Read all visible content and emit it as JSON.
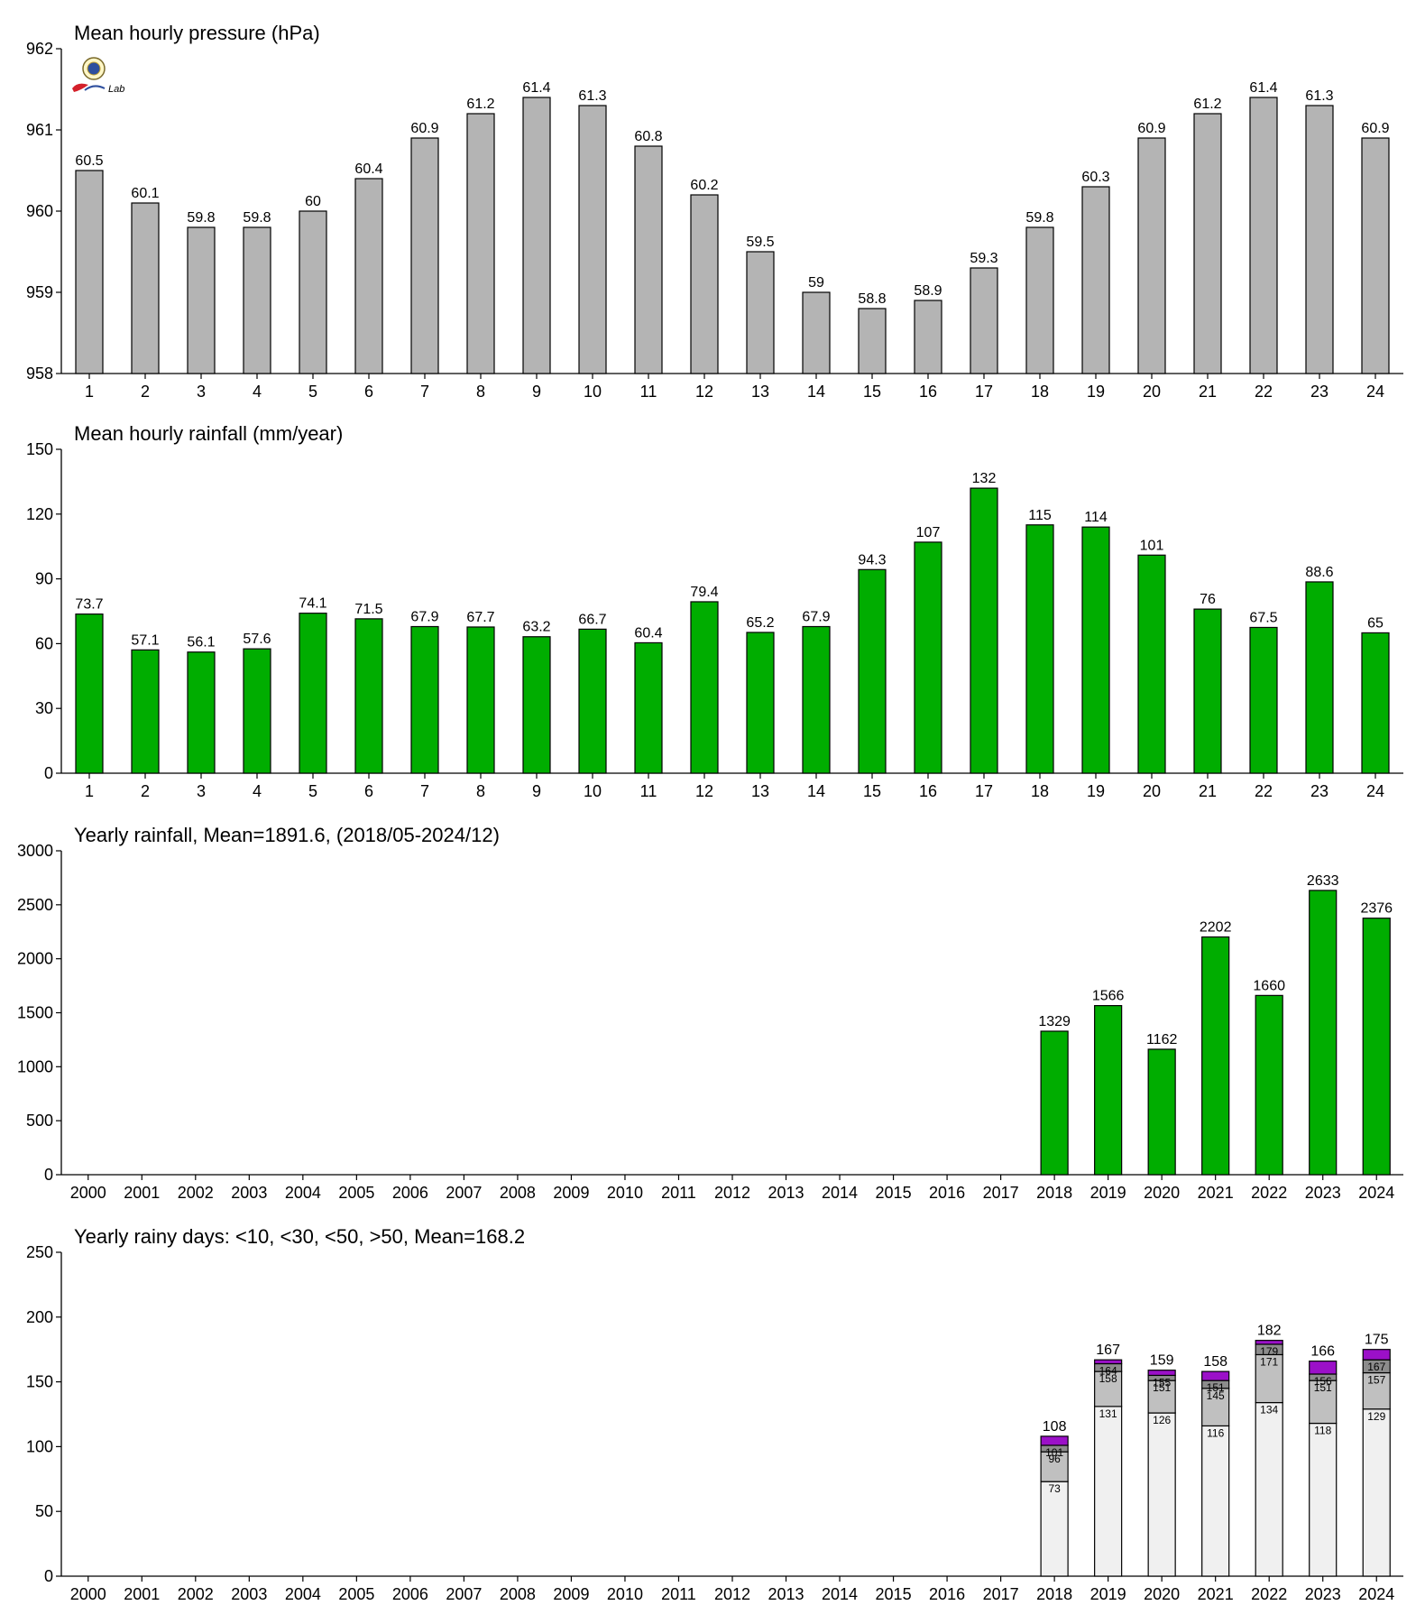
{
  "logo": {
    "text": "Lab"
  },
  "colors": {
    "gray": "#b4b4b4",
    "green": "#00ad00",
    "light": "#f0f0f0",
    "mid": "#c0c0c0",
    "dark": "#8c8c8c",
    "purple": "#9b10c8"
  },
  "chart_data": [
    {
      "type": "bar",
      "title": "Mean hourly pressure (hPa)",
      "ylim": [
        958,
        962
      ],
      "yticks": [
        958,
        959,
        960,
        961,
        962
      ],
      "categories": [
        "1",
        "2",
        "3",
        "4",
        "5",
        "6",
        "7",
        "8",
        "9",
        "10",
        "11",
        "12",
        "13",
        "14",
        "15",
        "16",
        "17",
        "18",
        "19",
        "20",
        "21",
        "22",
        "23",
        "24"
      ],
      "values": [
        960.5,
        960.1,
        959.8,
        959.8,
        960,
        960.4,
        960.9,
        961.2,
        961.4,
        961.3,
        960.8,
        960.2,
        959.5,
        959,
        958.8,
        958.9,
        959.3,
        959.8,
        960.3,
        960.9,
        961.2,
        961.4,
        961.3,
        960.9
      ],
      "labels": [
        "60.5",
        "60.1",
        "59.8",
        "59.8",
        "60",
        "60.4",
        "60.9",
        "61.2",
        "61.4",
        "61.3",
        "60.8",
        "60.2",
        "59.5",
        "59",
        "58.8",
        "58.9",
        "59.3",
        "59.8",
        "60.3",
        "60.9",
        "61.2",
        "61.4",
        "61.3",
        "60.9"
      ],
      "color": "#b4b4b4"
    },
    {
      "type": "bar",
      "title": "Mean hourly rainfall (mm/year)",
      "ylim": [
        0,
        150
      ],
      "yticks": [
        0,
        30,
        60,
        90,
        120,
        150
      ],
      "categories": [
        "1",
        "2",
        "3",
        "4",
        "5",
        "6",
        "7",
        "8",
        "9",
        "10",
        "11",
        "12",
        "13",
        "14",
        "15",
        "16",
        "17",
        "18",
        "19",
        "20",
        "21",
        "22",
        "23",
        "24"
      ],
      "values": [
        73.7,
        57.1,
        56.1,
        57.6,
        74.1,
        71.5,
        67.9,
        67.7,
        63.2,
        66.7,
        60.4,
        79.4,
        65.2,
        67.9,
        94.3,
        107,
        132,
        115,
        114,
        101,
        76,
        67.5,
        88.6,
        65
      ],
      "labels": [
        "73.7",
        "57.1",
        "56.1",
        "57.6",
        "74.1",
        "71.5",
        "67.9",
        "67.7",
        "63.2",
        "66.7",
        "60.4",
        "79.4",
        "65.2",
        "67.9",
        "94.3",
        "107",
        "132",
        "115",
        "114",
        "101",
        "76",
        "67.5",
        "88.6",
        "65"
      ],
      "color": "#00ad00"
    },
    {
      "type": "bar",
      "title": "Yearly rainfall, Mean=1891.6, (2018/05-2024/12)",
      "ylim": [
        0,
        3000
      ],
      "yticks": [
        0,
        500,
        1000,
        1500,
        2000,
        2500,
        3000
      ],
      "categories": [
        "2000",
        "2001",
        "2002",
        "2003",
        "2004",
        "2005",
        "2006",
        "2007",
        "2008",
        "2009",
        "2010",
        "2011",
        "2012",
        "2013",
        "2014",
        "2015",
        "2016",
        "2017",
        "2018",
        "2019",
        "2020",
        "2021",
        "2022",
        "2023",
        "2024"
      ],
      "values": [
        null,
        null,
        null,
        null,
        null,
        null,
        null,
        null,
        null,
        null,
        null,
        null,
        null,
        null,
        null,
        null,
        null,
        null,
        1329,
        1566,
        1162,
        2202,
        1660,
        2633,
        2376
      ],
      "labels": [
        "",
        "",
        "",
        "",
        "",
        "",
        "",
        "",
        "",
        "",
        "",
        "",
        "",
        "",
        "",
        "",
        "",
        "",
        "1329",
        "1566",
        "1162",
        "2202",
        "1660",
        "2633",
        "2376"
      ],
      "color": "#00ad00"
    },
    {
      "type": "stacked-bar",
      "title": "Yearly rainy days: <10, <30, <50, >50, Mean=168.2",
      "ylim": [
        0,
        250
      ],
      "yticks": [
        0,
        50,
        100,
        150,
        200,
        250
      ],
      "categories": [
        "2000",
        "2001",
        "2002",
        "2003",
        "2004",
        "2005",
        "2006",
        "2007",
        "2008",
        "2009",
        "2010",
        "2011",
        "2012",
        "2013",
        "2014",
        "2015",
        "2016",
        "2017",
        "2018",
        "2019",
        "2020",
        "2021",
        "2022",
        "2023",
        "2024"
      ],
      "cumulative": [
        null,
        null,
        null,
        null,
        null,
        null,
        null,
        null,
        null,
        null,
        null,
        null,
        null,
        null,
        null,
        null,
        null,
        null,
        [
          73,
          96,
          101,
          108
        ],
        [
          131,
          158,
          164,
          167
        ],
        [
          126,
          151,
          155,
          159
        ],
        [
          116,
          145,
          151,
          158
        ],
        [
          134,
          171,
          179,
          182
        ],
        [
          118,
          151,
          156,
          166
        ],
        [
          129,
          157,
          167,
          175
        ]
      ],
      "segment_labels": [
        null,
        null,
        null,
        null,
        null,
        null,
        null,
        null,
        null,
        null,
        null,
        null,
        null,
        null,
        null,
        null,
        null,
        null,
        [
          "73",
          "96",
          "101"
        ],
        [
          "131",
          "158",
          "164"
        ],
        [
          "126",
          "151",
          "155"
        ],
        [
          "116",
          "145",
          "151"
        ],
        [
          "134",
          "171",
          "179"
        ],
        [
          "118",
          "151",
          "156"
        ],
        [
          "129",
          "157",
          "167"
        ]
      ],
      "total_labels": [
        "",
        "",
        "",
        "",
        "",
        "",
        "",
        "",
        "",
        "",
        "",
        "",
        "",
        "",
        "",
        "",
        "",
        "",
        "108",
        "167",
        "159",
        "158",
        "182",
        "166",
        "175"
      ],
      "segment_colors": [
        "#f0f0f0",
        "#c0c0c0",
        "#8c8c8c",
        "#9b10c8"
      ]
    }
  ]
}
